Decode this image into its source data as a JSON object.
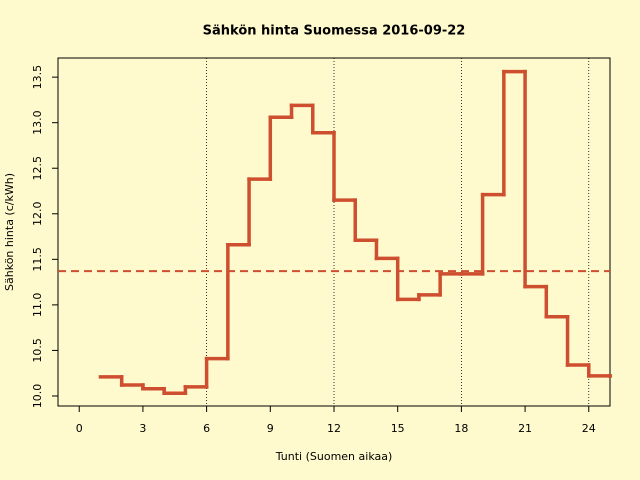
{
  "chart_data": {
    "type": "step",
    "title": "Sähkön hinta Suomessa 2016-09-22",
    "xlabel": "Tunti (Suomen aikaa)",
    "ylabel": "Sähkön hinta (c/kWh)",
    "x": [
      1,
      2,
      3,
      4,
      5,
      6,
      7,
      8,
      9,
      10,
      11,
      12,
      13,
      14,
      15,
      16,
      17,
      18,
      19,
      20,
      21,
      22,
      23,
      24,
      25
    ],
    "series": [
      {
        "name": "Hinta",
        "color": "#cd4f2f",
        "values": [
          10.21,
          10.12,
          10.08,
          10.03,
          10.1,
          10.41,
          11.66,
          12.38,
          13.06,
          13.19,
          12.89,
          12.15,
          11.71,
          11.51,
          11.06,
          11.11,
          11.34,
          11.34,
          12.21,
          13.56,
          11.2,
          10.87,
          10.34,
          10.22,
          10.22
        ]
      }
    ],
    "mean": 11.37,
    "mean_color": "#cd4f2f",
    "vlines": [
      6,
      12,
      18,
      24
    ],
    "xlim": [
      -1,
      25
    ],
    "ylim": [
      9.89,
      13.71
    ],
    "xticks": [
      0,
      3,
      6,
      9,
      12,
      15,
      18,
      21,
      24
    ],
    "yticks": [
      {
        "value": 10,
        "label": "10.0"
      },
      10.5,
      {
        "value": 11,
        "label": "11.0"
      },
      11.5,
      {
        "value": 12,
        "label": "12.0"
      },
      12.5,
      {
        "value": 13,
        "label": "13.0"
      },
      13.5
    ]
  }
}
